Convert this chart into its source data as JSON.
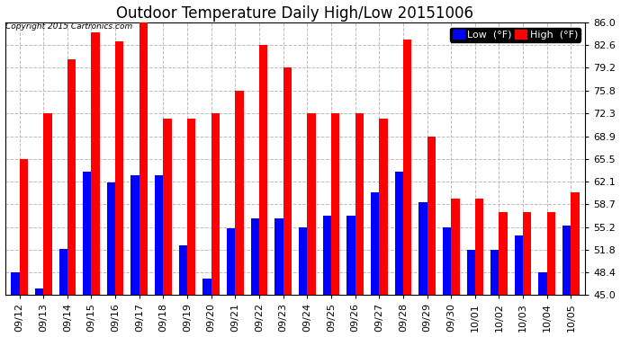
{
  "title": "Outdoor Temperature Daily High/Low 20151006",
  "copyright": "Copyright 2015 Cartronics.com",
  "legend_low": "Low  (°F)",
  "legend_high": "High  (°F)",
  "dates": [
    "09/12",
    "09/13",
    "09/14",
    "09/15",
    "09/16",
    "09/17",
    "09/18",
    "09/19",
    "09/20",
    "09/21",
    "09/22",
    "09/23",
    "09/24",
    "09/25",
    "09/26",
    "09/27",
    "09/28",
    "09/29",
    "09/30",
    "10/01",
    "10/02",
    "10/03",
    "10/04",
    "10/05"
  ],
  "highs": [
    65.5,
    72.3,
    80.5,
    84.5,
    83.2,
    86.0,
    71.5,
    71.5,
    72.3,
    75.8,
    82.6,
    79.2,
    72.3,
    72.3,
    72.3,
    71.5,
    83.5,
    68.9,
    59.5,
    59.5,
    57.5,
    57.5,
    57.5,
    60.5
  ],
  "lows": [
    48.4,
    46.0,
    52.0,
    63.5,
    62.0,
    63.0,
    63.0,
    52.5,
    47.5,
    55.0,
    56.5,
    56.5,
    55.2,
    57.0,
    57.0,
    60.5,
    63.5,
    59.0,
    55.2,
    51.8,
    51.8,
    54.0,
    48.4,
    55.5
  ],
  "ymin": 45.0,
  "ymax": 86.0,
  "yticks": [
    45.0,
    48.4,
    51.8,
    55.2,
    58.7,
    62.1,
    65.5,
    68.9,
    72.3,
    75.8,
    79.2,
    82.6,
    86.0
  ],
  "bar_color_high": "#ff0000",
  "bar_color_low": "#0000ff",
  "background_color": "#ffffff",
  "grid_color": "#bbbbbb",
  "title_fontsize": 12,
  "tick_fontsize": 8,
  "legend_fontsize": 8
}
